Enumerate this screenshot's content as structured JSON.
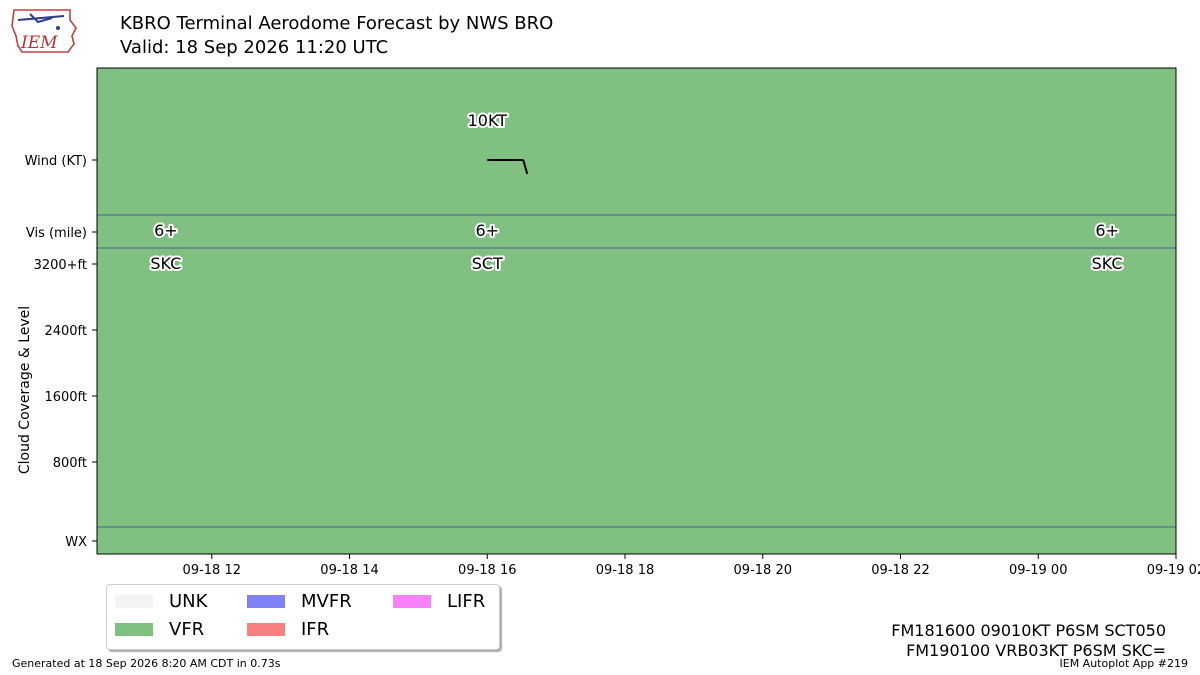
{
  "header": {
    "title": "KBRO Terminal Aerodome Forecast by NWS BRO",
    "subtitle": "Valid: 18 Sep 2026 11:20 UTC",
    "logo_text": "IEM"
  },
  "chart_data": {
    "type": "timeline",
    "background_category": "VFR",
    "colors": {
      "UNK": "#f3f3f3",
      "VFR": "#80c080",
      "MVFR": "#8080f8",
      "IFR": "#f88080",
      "LIFR": "#f880f8",
      "divider": "#4a5f8a"
    },
    "x_range": [
      "2026-09-18 10:20",
      "2026-09-19 02:00"
    ],
    "x_ticks": [
      {
        "t": "2026-09-18 12:00",
        "label": "09-18 12"
      },
      {
        "t": "2026-09-18 14:00",
        "label": "09-18 14"
      },
      {
        "t": "2026-09-18 16:00",
        "label": "09-18 16"
      },
      {
        "t": "2026-09-18 18:00",
        "label": "09-18 18"
      },
      {
        "t": "2026-09-18 20:00",
        "label": "09-18 20"
      },
      {
        "t": "2026-09-18 22:00",
        "label": "09-18 22"
      },
      {
        "t": "2026-09-19 00:00",
        "label": "09-19 00"
      },
      {
        "t": "2026-09-19 02:00",
        "label": "09-19 02"
      }
    ],
    "y_ticks": [
      "Wind (KT)",
      "Vis (mile)",
      "3200+ft",
      "2400ft",
      "1600ft",
      "800ft",
      "WX"
    ],
    "ylabel": "Cloud Coverage & Level",
    "wind": [
      {
        "t": "2026-09-18 16:00",
        "label": "10KT",
        "direction_deg": 90,
        "speed_kt": 10
      }
    ],
    "visibility": [
      {
        "t": "2026-09-18 11:20",
        "label": "6+"
      },
      {
        "t": "2026-09-18 16:00",
        "label": "6+"
      },
      {
        "t": "2026-09-19 01:00",
        "label": "6+"
      }
    ],
    "clouds": [
      {
        "t": "2026-09-18 11:20",
        "label": "SKC"
      },
      {
        "t": "2026-09-18 16:00",
        "label": "SCT"
      },
      {
        "t": "2026-09-19 01:00",
        "label": "SKC"
      }
    ]
  },
  "legend": [
    {
      "label": "UNK",
      "color": "#f3f3f3"
    },
    {
      "label": "VFR",
      "color": "#80c080"
    },
    {
      "label": "MVFR",
      "color": "#8080f8"
    },
    {
      "label": "IFR",
      "color": "#f88080"
    },
    {
      "label": "LIFR",
      "color": "#f880f8"
    }
  ],
  "taf_lines": [
    "FM181600 09010KT P6SM SCT050",
    "FM190100 VRB03KT P6SM SKC="
  ],
  "footer": {
    "generated": "Generated at 18 Sep 2026 8:20 AM CDT in 0.73s",
    "app": "IEM Autoplot App #219"
  }
}
